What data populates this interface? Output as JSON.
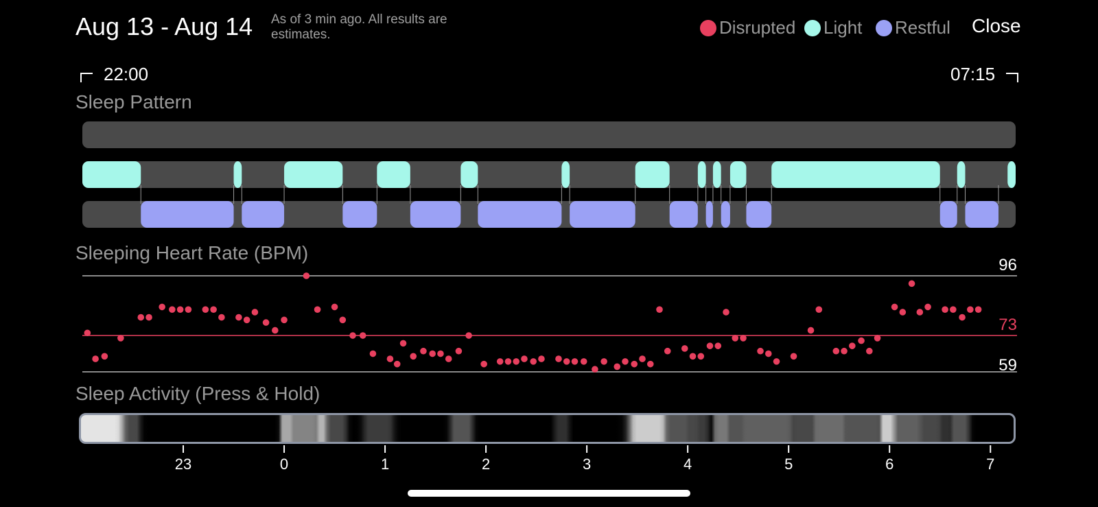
{
  "header": {
    "date_range": "Aug 13 - Aug 14",
    "subtitle": "As of 3 min ago. All results are estimates.",
    "close_label": "Close"
  },
  "legend": [
    {
      "label": "Disrupted",
      "color": "#e8405f"
    },
    {
      "label": "Light",
      "color": "#a6f7ea"
    },
    {
      "label": "Restful",
      "color": "#9ba1f5"
    }
  ],
  "time_range": {
    "start": "22:00",
    "end": "07:15"
  },
  "sleep_pattern": {
    "title": "Sleep Pattern",
    "start_hour": 22.0,
    "end_hour": 31.25,
    "disrupted": [],
    "light": [
      [
        22.0,
        22.58
      ],
      [
        23.5,
        23.58
      ],
      [
        24.0,
        24.58
      ],
      [
        24.92,
        25.25
      ],
      [
        25.75,
        25.92
      ],
      [
        26.75,
        26.83
      ],
      [
        27.48,
        27.82
      ],
      [
        28.1,
        28.18
      ],
      [
        28.25,
        28.33
      ],
      [
        28.42,
        28.58
      ],
      [
        28.83,
        30.5
      ],
      [
        30.67,
        30.75
      ],
      [
        31.17,
        31.25
      ]
    ],
    "restful": [
      [
        22.58,
        23.5
      ],
      [
        23.58,
        24.0
      ],
      [
        24.58,
        24.92
      ],
      [
        25.25,
        25.75
      ],
      [
        25.92,
        26.75
      ],
      [
        26.83,
        27.48
      ],
      [
        27.82,
        28.1
      ],
      [
        28.18,
        28.25
      ],
      [
        28.33,
        28.42
      ],
      [
        28.58,
        28.83
      ],
      [
        30.5,
        30.67
      ],
      [
        30.75,
        31.08
      ]
    ]
  },
  "heart_rate": {
    "title": "Sleeping Heart Rate (BPM)",
    "max_label": "96",
    "avg_label": "73",
    "min_label": "59",
    "max": 96,
    "avg": 73,
    "min": 59,
    "points": [
      [
        22.05,
        74
      ],
      [
        22.13,
        64
      ],
      [
        22.22,
        65
      ],
      [
        22.38,
        72
      ],
      [
        22.58,
        80
      ],
      [
        22.66,
        80
      ],
      [
        22.79,
        84
      ],
      [
        22.89,
        83
      ],
      [
        22.97,
        83
      ],
      [
        23.05,
        83
      ],
      [
        23.22,
        83
      ],
      [
        23.3,
        83
      ],
      [
        23.38,
        80
      ],
      [
        23.55,
        80
      ],
      [
        23.63,
        79
      ],
      [
        23.71,
        82
      ],
      [
        23.82,
        78
      ],
      [
        23.91,
        75
      ],
      [
        24.0,
        79
      ],
      [
        24.22,
        96
      ],
      [
        24.33,
        83
      ],
      [
        24.5,
        84
      ],
      [
        24.58,
        79
      ],
      [
        24.68,
        73
      ],
      [
        24.78,
        73
      ],
      [
        24.88,
        66
      ],
      [
        25.05,
        64
      ],
      [
        25.12,
        62
      ],
      [
        25.18,
        70
      ],
      [
        25.28,
        65
      ],
      [
        25.38,
        67
      ],
      [
        25.47,
        66
      ],
      [
        25.55,
        66
      ],
      [
        25.63,
        64
      ],
      [
        25.73,
        67
      ],
      [
        25.83,
        73
      ],
      [
        25.98,
        62
      ],
      [
        26.14,
        63
      ],
      [
        26.22,
        63
      ],
      [
        26.3,
        63
      ],
      [
        26.38,
        64
      ],
      [
        26.47,
        63
      ],
      [
        26.55,
        64
      ],
      [
        26.72,
        64
      ],
      [
        26.8,
        63
      ],
      [
        26.88,
        63
      ],
      [
        26.97,
        63
      ],
      [
        27.08,
        60
      ],
      [
        27.17,
        63
      ],
      [
        27.3,
        61
      ],
      [
        27.38,
        63
      ],
      [
        27.47,
        62
      ],
      [
        27.55,
        64
      ],
      [
        27.63,
        62
      ],
      [
        27.72,
        83
      ],
      [
        27.8,
        67
      ],
      [
        27.97,
        68
      ],
      [
        28.05,
        65
      ],
      [
        28.13,
        65
      ],
      [
        28.22,
        69
      ],
      [
        28.3,
        69
      ],
      [
        28.38,
        82
      ],
      [
        28.47,
        72
      ],
      [
        28.55,
        72
      ],
      [
        28.72,
        67
      ],
      [
        28.8,
        66
      ],
      [
        28.88,
        63
      ],
      [
        29.05,
        65
      ],
      [
        29.22,
        75
      ],
      [
        29.3,
        83
      ],
      [
        29.47,
        67
      ],
      [
        29.55,
        67
      ],
      [
        29.63,
        69
      ],
      [
        29.72,
        71
      ],
      [
        29.8,
        67
      ],
      [
        29.88,
        72
      ],
      [
        30.05,
        84
      ],
      [
        30.13,
        82
      ],
      [
        30.22,
        93
      ],
      [
        30.3,
        82
      ],
      [
        30.38,
        84
      ],
      [
        30.55,
        83
      ],
      [
        30.63,
        83
      ],
      [
        30.72,
        80
      ],
      [
        30.8,
        83
      ],
      [
        30.88,
        83
      ]
    ]
  },
  "sleep_activity": {
    "title": "Sleep Activity (Press & Hold)",
    "start_hour": 22.0,
    "end_hour": 31.25,
    "peaks": [
      [
        22.0,
        22.35,
        0.95
      ],
      [
        22.4,
        22.55,
        0.3
      ],
      [
        24.0,
        24.08,
        0.7
      ],
      [
        24.1,
        24.3,
        0.55
      ],
      [
        24.35,
        24.42,
        0.75
      ],
      [
        24.45,
        24.6,
        0.3
      ],
      [
        24.85,
        25.05,
        0.25
      ],
      [
        25.7,
        25.85,
        0.35
      ],
      [
        26.72,
        26.82,
        0.2
      ],
      [
        27.5,
        27.75,
        0.85
      ],
      [
        27.75,
        28.0,
        0.35
      ],
      [
        28.0,
        28.1,
        0.3
      ],
      [
        28.1,
        28.2,
        0.25
      ],
      [
        28.3,
        28.4,
        0.5
      ],
      [
        28.4,
        28.6,
        0.35
      ],
      [
        28.6,
        29.0,
        0.4
      ],
      [
        29.0,
        29.1,
        0.25
      ],
      [
        29.1,
        29.3,
        0.3
      ],
      [
        29.3,
        29.55,
        0.45
      ],
      [
        29.55,
        29.9,
        0.35
      ],
      [
        29.95,
        30.05,
        0.85
      ],
      [
        30.05,
        30.3,
        0.4
      ],
      [
        30.35,
        30.5,
        0.3
      ],
      [
        30.5,
        30.6,
        0.2
      ],
      [
        30.65,
        30.78,
        0.35
      ]
    ]
  },
  "axis": {
    "ticks": [
      {
        "label": "23",
        "hour": 23
      },
      {
        "label": "0",
        "hour": 24
      },
      {
        "label": "1",
        "hour": 25
      },
      {
        "label": "2",
        "hour": 26
      },
      {
        "label": "3",
        "hour": 27
      },
      {
        "label": "4",
        "hour": 28
      },
      {
        "label": "5",
        "hour": 29
      },
      {
        "label": "6",
        "hour": 30
      },
      {
        "label": "7",
        "hour": 31
      }
    ]
  }
}
